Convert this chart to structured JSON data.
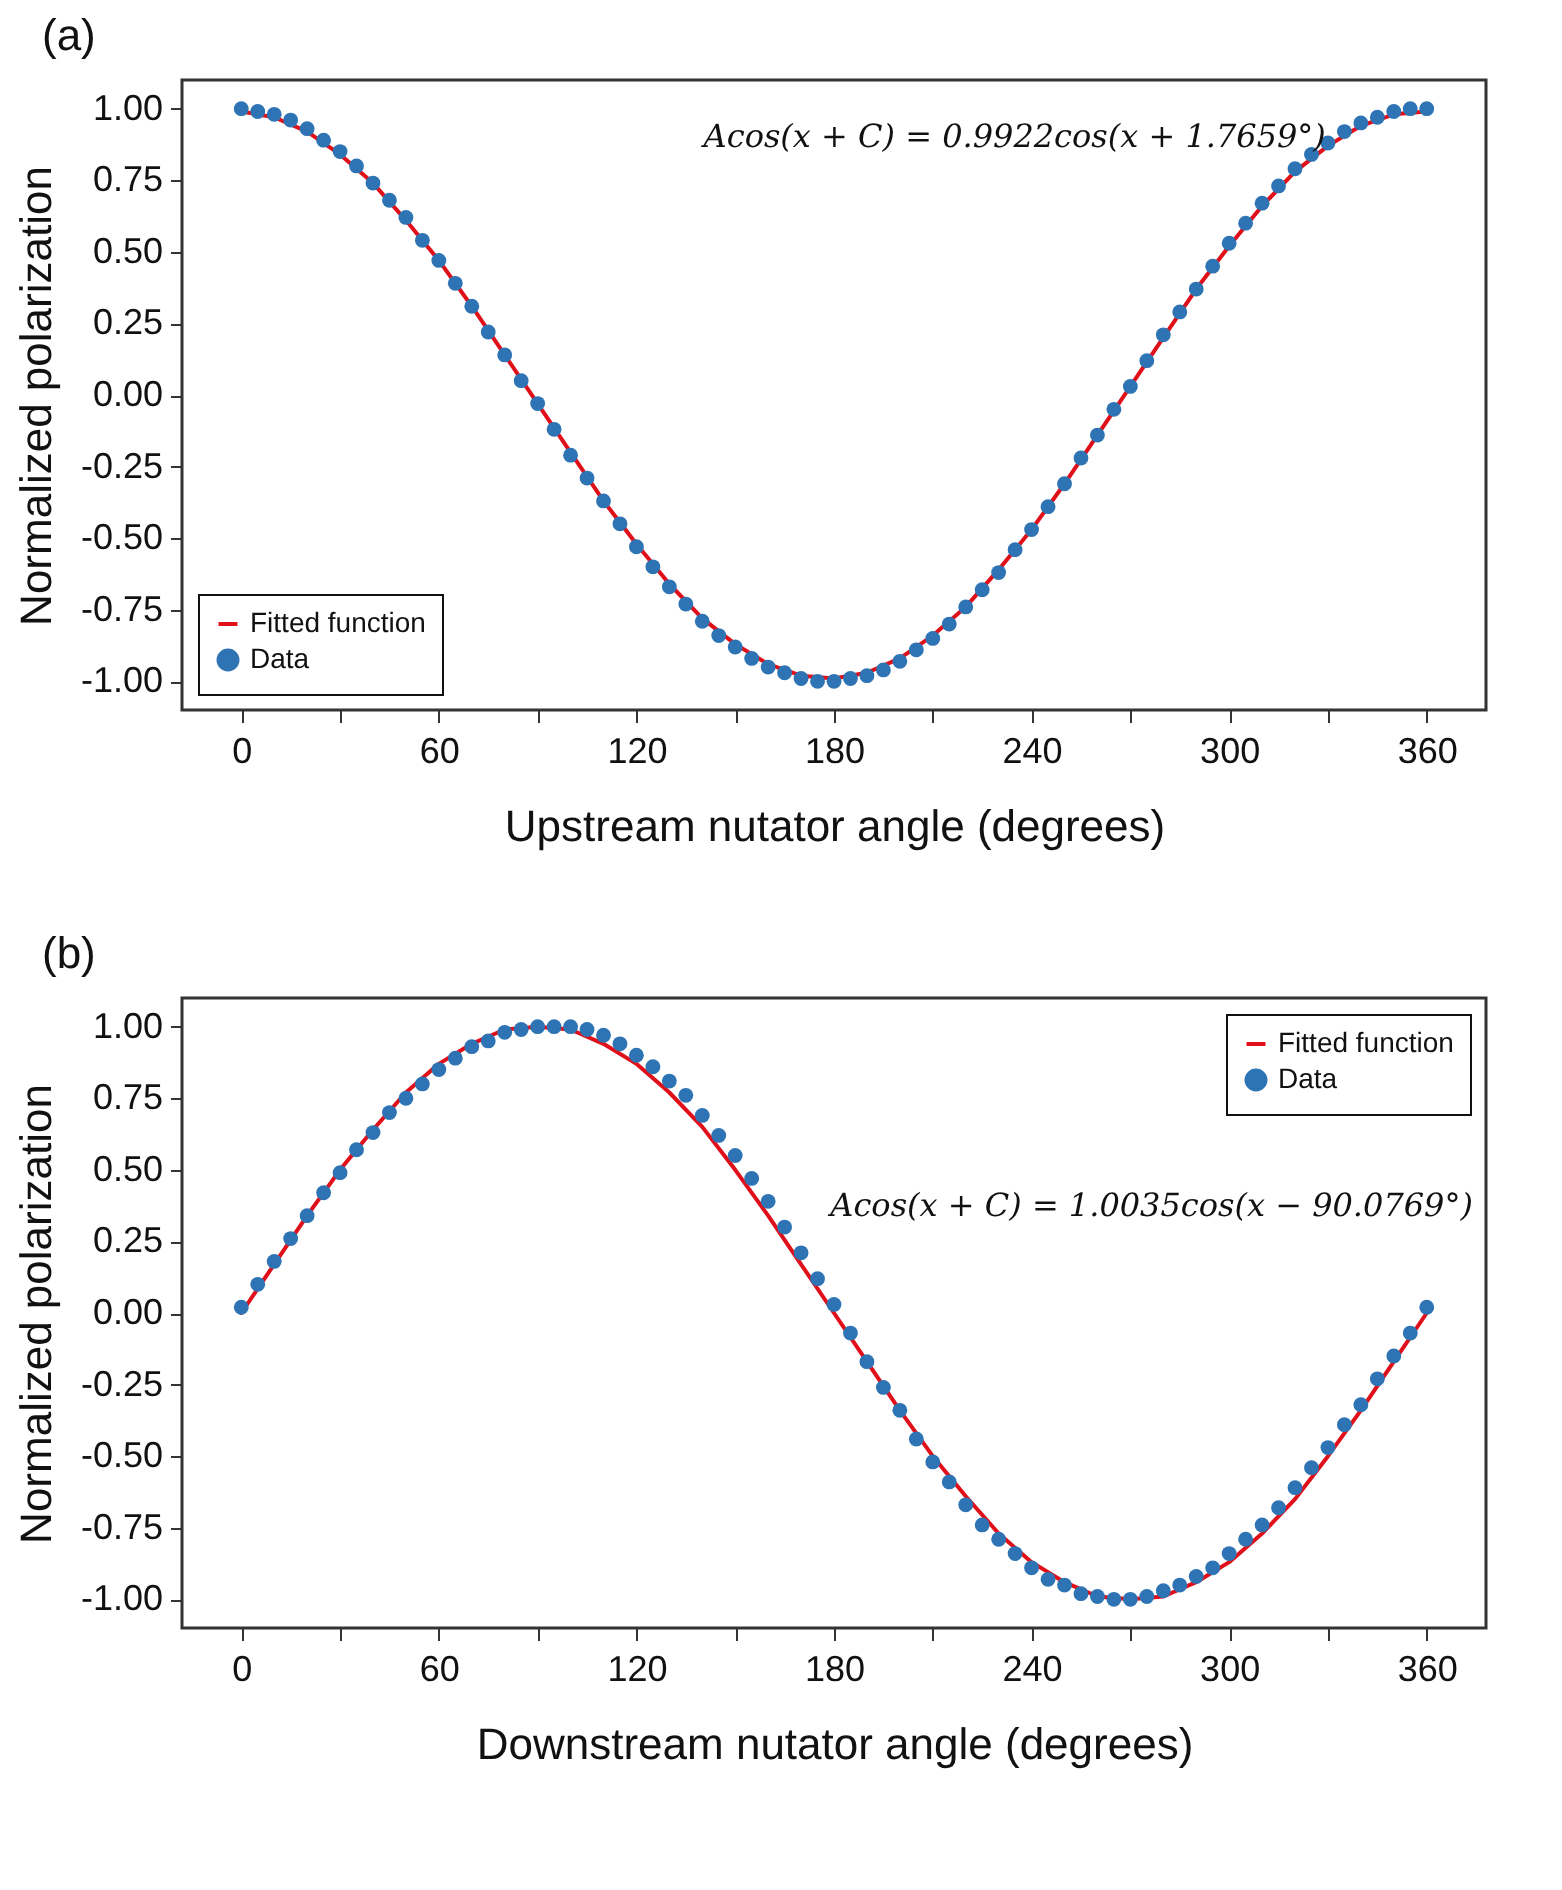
{
  "chart_data": [
    {
      "type": "scatter",
      "title": "(a)",
      "xlabel": "Upstream nutator angle (degrees)",
      "ylabel": "Normalized polarization",
      "annotations": [
        "Acos(x + C) = 0.9922cos(x + 1.7659°)"
      ],
      "legend": "bottom left",
      "grid": false,
      "xlim": [
        -18,
        378
      ],
      "ylim": [
        -1.1,
        1.1
      ],
      "xticks": [
        0,
        {
          "value": 30,
          "label": null
        },
        60,
        {
          "value": 90,
          "label": null
        },
        120,
        {
          "value": 150,
          "label": null
        },
        180,
        {
          "value": 210,
          "label": null
        },
        240,
        {
          "value": 270,
          "label": null
        },
        300,
        {
          "value": 330,
          "label": null
        },
        360
      ],
      "yticks": [
        {
          "value": -1,
          "label": "-1.00"
        },
        {
          "value": -0.75,
          "label": "-0.75"
        },
        {
          "value": -0.5,
          "label": "-0.50"
        },
        {
          "value": -0.25,
          "label": "-0.25"
        },
        {
          "value": 0,
          "label": "0.00"
        },
        {
          "value": 0.25,
          "label": "0.25"
        },
        {
          "value": 0.5,
          "label": "0.50"
        },
        {
          "value": 0.75,
          "label": "0.75"
        },
        {
          "value": 1,
          "label": "1.00"
        }
      ],
      "series": [
        {
          "name": "Fitted function",
          "type": "line",
          "color": "#e0101a",
          "line_style": "solid",
          "x": [
            0,
            10,
            20,
            30,
            40,
            50,
            60,
            70,
            80,
            90,
            100,
            110,
            120,
            130,
            140,
            150,
            160,
            170,
            180,
            190,
            200,
            210,
            220,
            230,
            240,
            250,
            260,
            270,
            280,
            290,
            300,
            310,
            320,
            330,
            340,
            350,
            360
          ],
          "values": [
            0.99,
            0.97,
            0.92,
            0.84,
            0.74,
            0.61,
            0.47,
            0.31,
            0.14,
            -0.03,
            -0.2,
            -0.37,
            -0.52,
            -0.66,
            -0.78,
            -0.87,
            -0.94,
            -0.98,
            -0.99,
            -0.97,
            -0.92,
            -0.84,
            -0.74,
            -0.61,
            -0.47,
            -0.31,
            -0.14,
            0.03,
            0.2,
            0.37,
            0.52,
            0.66,
            0.78,
            0.87,
            0.94,
            0.98,
            0.99
          ]
        },
        {
          "name": "Data",
          "type": "scatter",
          "marker": "circle",
          "color": "#2e74b5",
          "x": [
            0,
            5,
            10,
            15,
            20,
            25,
            30,
            35,
            40,
            45,
            50,
            55,
            60,
            65,
            70,
            75,
            80,
            85,
            90,
            95,
            100,
            105,
            110,
            115,
            120,
            125,
            130,
            135,
            140,
            145,
            150,
            155,
            160,
            165,
            170,
            175,
            180,
            185,
            190,
            195,
            200,
            205,
            210,
            215,
            220,
            225,
            230,
            235,
            240,
            245,
            250,
            255,
            260,
            265,
            270,
            275,
            280,
            285,
            290,
            295,
            300,
            305,
            310,
            315,
            320,
            325,
            330,
            335,
            340,
            345,
            350,
            355,
            360
          ],
          "values": [
            1.0,
            0.99,
            0.98,
            0.96,
            0.93,
            0.89,
            0.85,
            0.8,
            0.74,
            0.68,
            0.62,
            0.54,
            0.47,
            0.39,
            0.31,
            0.22,
            0.14,
            0.05,
            -0.03,
            -0.12,
            -0.21,
            -0.29,
            -0.37,
            -0.45,
            -0.53,
            -0.6,
            -0.67,
            -0.73,
            -0.79,
            -0.84,
            -0.88,
            -0.92,
            -0.95,
            -0.97,
            -0.99,
            -1.0,
            -1.0,
            -0.99,
            -0.98,
            -0.96,
            -0.93,
            -0.89,
            -0.85,
            -0.8,
            -0.74,
            -0.68,
            -0.62,
            -0.54,
            -0.47,
            -0.39,
            -0.31,
            -0.22,
            -0.14,
            -0.05,
            0.03,
            0.12,
            0.21,
            0.29,
            0.37,
            0.45,
            0.53,
            0.6,
            0.67,
            0.73,
            0.79,
            0.84,
            0.88,
            0.92,
            0.95,
            0.97,
            0.99,
            1.0,
            1.0
          ]
        }
      ]
    },
    {
      "type": "scatter",
      "title": "(b)",
      "xlabel": "Downstream nutator angle (degrees)",
      "ylabel": "Normalized polarization",
      "annotations": [
        "Acos(x + C) = 1.0035cos(x − 90.0769°)"
      ],
      "legend": "top right",
      "grid": false,
      "xlim": [
        -18,
        378
      ],
      "ylim": [
        -1.1,
        1.1
      ],
      "xticks": [
        0,
        {
          "value": 30,
          "label": null
        },
        60,
        {
          "value": 90,
          "label": null
        },
        120,
        {
          "value": 150,
          "label": null
        },
        180,
        {
          "value": 210,
          "label": null
        },
        240,
        {
          "value": 270,
          "label": null
        },
        300,
        {
          "value": 330,
          "label": null
        },
        360
      ],
      "yticks": [
        {
          "value": -1,
          "label": "-1.00"
        },
        {
          "value": -0.75,
          "label": "-0.75"
        },
        {
          "value": -0.5,
          "label": "-0.50"
        },
        {
          "value": -0.25,
          "label": "-0.25"
        },
        {
          "value": 0,
          "label": "0.00"
        },
        {
          "value": 0.25,
          "label": "0.25"
        },
        {
          "value": 0.5,
          "label": "0.50"
        },
        {
          "value": 0.75,
          "label": "0.75"
        },
        {
          "value": 1,
          "label": "1.00"
        }
      ],
      "series": [
        {
          "name": "Fitted function",
          "type": "line",
          "color": "#e0101a",
          "line_style": "solid",
          "x": [
            0,
            10,
            20,
            30,
            40,
            50,
            60,
            70,
            80,
            90,
            100,
            110,
            120,
            130,
            140,
            150,
            160,
            170,
            180,
            190,
            200,
            210,
            220,
            230,
            240,
            250,
            260,
            270,
            280,
            290,
            300,
            310,
            320,
            330,
            340,
            350,
            360
          ],
          "values": [
            0.0,
            0.17,
            0.34,
            0.5,
            0.64,
            0.77,
            0.87,
            0.94,
            0.99,
            1.0,
            0.99,
            0.94,
            0.87,
            0.77,
            0.65,
            0.5,
            0.34,
            0.17,
            0.0,
            -0.17,
            -0.34,
            -0.5,
            -0.64,
            -0.77,
            -0.87,
            -0.94,
            -0.99,
            -1.0,
            -0.99,
            -0.94,
            -0.87,
            -0.77,
            -0.65,
            -0.5,
            -0.34,
            -0.17,
            0.0
          ]
        },
        {
          "name": "Data",
          "type": "scatter",
          "marker": "circle",
          "color": "#2e74b5",
          "x": [
            0,
            5,
            10,
            15,
            20,
            25,
            30,
            35,
            40,
            45,
            50,
            55,
            60,
            65,
            70,
            75,
            80,
            85,
            90,
            95,
            100,
            105,
            110,
            115,
            120,
            125,
            130,
            135,
            140,
            145,
            150,
            155,
            160,
            165,
            170,
            175,
            180,
            185,
            190,
            195,
            200,
            205,
            210,
            215,
            220,
            225,
            230,
            235,
            240,
            245,
            250,
            255,
            260,
            265,
            270,
            275,
            280,
            285,
            290,
            295,
            300,
            305,
            310,
            315,
            320,
            325,
            330,
            335,
            340,
            345,
            350,
            355,
            360
          ],
          "values": [
            0.02,
            0.1,
            0.18,
            0.26,
            0.34,
            0.42,
            0.49,
            0.57,
            0.63,
            0.7,
            0.75,
            0.8,
            0.85,
            0.89,
            0.93,
            0.95,
            0.98,
            0.99,
            1.0,
            1.0,
            1.0,
            0.99,
            0.97,
            0.94,
            0.9,
            0.86,
            0.81,
            0.76,
            0.69,
            0.62,
            0.55,
            0.47,
            0.39,
            0.3,
            0.21,
            0.12,
            0.03,
            -0.07,
            -0.17,
            -0.26,
            -0.34,
            -0.44,
            -0.52,
            -0.59,
            -0.67,
            -0.74,
            -0.79,
            -0.84,
            -0.89,
            -0.93,
            -0.95,
            -0.98,
            -0.99,
            -1.0,
            -1.0,
            -0.99,
            -0.97,
            -0.95,
            -0.92,
            -0.89,
            -0.84,
            -0.79,
            -0.74,
            -0.68,
            -0.61,
            -0.54,
            -0.47,
            -0.39,
            -0.32,
            -0.23,
            -0.15,
            -0.07,
            0.02
          ]
        }
      ]
    }
  ]
}
